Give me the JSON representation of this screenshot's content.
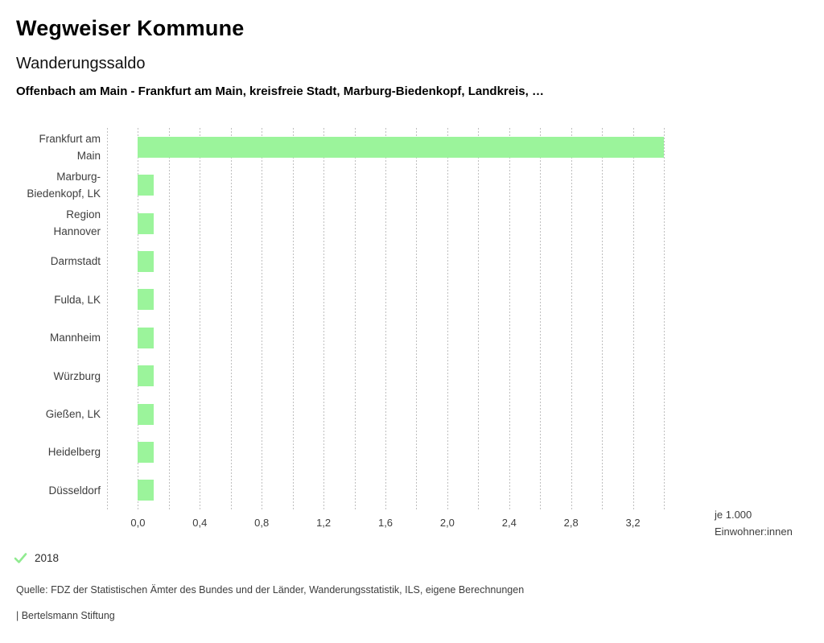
{
  "header": {
    "title": "Wegweiser Kommune",
    "subtitle": "Wanderungssaldo",
    "selection": "Offenbach am Main - Frankfurt am Main, kreisfreie Stadt, Marburg-Biedenkopf, Landkreis, …"
  },
  "chart_data": {
    "type": "bar",
    "orientation": "horizontal",
    "title": "Wanderungssaldo",
    "categories": [
      "Frankfurt am Main",
      "Marburg-Biedenkopf, LK",
      "Region Hannover",
      "Darmstadt",
      "Fulda, LK",
      "Mannheim",
      "Würzburg",
      "Gießen, LK",
      "Heidelberg",
      "Düsseldorf"
    ],
    "category_label_lines": [
      [
        "Frankfurt am",
        "Main"
      ],
      [
        "Marburg-",
        "Biedenkopf, LK"
      ],
      [
        "Region",
        "Hannover"
      ],
      [
        "Darmstadt"
      ],
      [
        "Fulda, LK"
      ],
      [
        "Mannheim"
      ],
      [
        "Würzburg"
      ],
      [
        "Gießen, LK"
      ],
      [
        "Heidelberg"
      ],
      [
        "Düsseldorf"
      ]
    ],
    "series": [
      {
        "name": "2018",
        "values": [
          3.4,
          0.1,
          0.1,
          0.1,
          0.1,
          0.1,
          0.1,
          0.1,
          0.1,
          0.1
        ]
      }
    ],
    "xlabel_lines": [
      "je 1.000",
      "Einwohner:innen"
    ],
    "xlim": [
      -0.2,
      3.4
    ],
    "grid_step": 0.2,
    "tick_values": [
      0.0,
      0.4,
      0.8,
      1.2,
      1.6,
      2.0,
      2.4,
      2.8,
      3.2
    ],
    "tick_labels": [
      "0,0",
      "0,4",
      "0,8",
      "1,2",
      "1,6",
      "2,0",
      "2,4",
      "2,8",
      "3,2"
    ],
    "grid_on": true,
    "legend_position": "bottom-left"
  },
  "legend": {
    "year": "2018"
  },
  "footer": {
    "source": "Quelle: FDZ der Statistischen Ämter des Bundes und der Länder, Wanderungsstatistik, ILS, eigene Berechnungen",
    "branding": "| Bertelsmann Stiftung"
  },
  "colors": {
    "bar": "#9bf49b",
    "check": "#90eb90",
    "grid": "#bfbfbf",
    "text": "#3d3d3d"
  }
}
